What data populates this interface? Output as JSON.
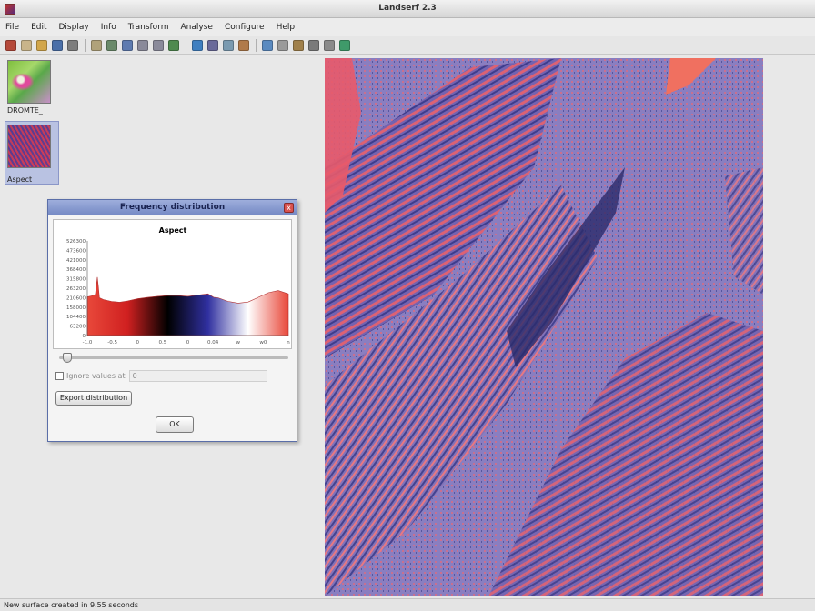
{
  "window": {
    "title": "Landserf 2.3"
  },
  "menu": [
    "File",
    "Edit",
    "Display",
    "Info",
    "Transform",
    "Analyse",
    "Configure",
    "Help"
  ],
  "toolbar_icons": [
    {
      "name": "save-icon",
      "color": "#b5493a"
    },
    {
      "name": "new-icon",
      "color": "#c9b48a"
    },
    {
      "name": "open-folder-icon",
      "color": "#d2a64a"
    },
    {
      "name": "save-disk-icon",
      "color": "#4a6fa8"
    },
    {
      "name": "print-icon",
      "color": "#7d7d7d"
    },
    {
      "name": "pencil-icon",
      "color": "#b0a27a"
    },
    {
      "name": "select-icon",
      "color": "#6a8a6a"
    },
    {
      "name": "pan-icon",
      "color": "#5e7bb0"
    },
    {
      "name": "zoom-in-icon",
      "color": "#8a8a9a"
    },
    {
      "name": "zoom-out-icon",
      "color": "#8a8a9a"
    },
    {
      "name": "refresh-icon",
      "color": "#4f8a4f"
    },
    {
      "name": "chart-icon",
      "color": "#3f7fc0"
    },
    {
      "name": "table-icon",
      "color": "#6a6a9a"
    },
    {
      "name": "layers-icon",
      "color": "#7a9ab0"
    },
    {
      "name": "stats-icon",
      "color": "#b07a4a"
    },
    {
      "name": "histogram-icon",
      "color": "#5a8ac0"
    },
    {
      "name": "profile-icon",
      "color": "#9a9a9a"
    },
    {
      "name": "measure-icon",
      "color": "#a0804a"
    },
    {
      "name": "info-icon",
      "color": "#7a7a7a"
    },
    {
      "name": "settings-icon",
      "color": "#8a8a8a"
    },
    {
      "name": "globe-icon",
      "color": "#3f9a6a"
    }
  ],
  "thumbnails": [
    {
      "label": "DROMTE_"
    },
    {
      "label": "Aspect"
    }
  ],
  "dialog": {
    "title": "Frequency distribution",
    "close_label": "x",
    "ignore_label": "Ignore values at",
    "ignore_value": "0",
    "export_label": "Export distribution",
    "ok_label": "OK",
    "slider_value": 0.0
  },
  "chart_data": {
    "type": "area",
    "title": "Aspect",
    "xlabel": "",
    "ylabel": "",
    "x_tick_labels": [
      "-1.0",
      "-0.5",
      "0",
      "0.5",
      "0",
      "0.04",
      "w",
      "w0",
      "n"
    ],
    "y_tick_labels": [
      "0",
      "63200",
      "104400",
      "158000",
      "210600",
      "263200",
      "315800",
      "368400",
      "421000",
      "473600",
      "526300"
    ],
    "ylim": [
      0,
      526300
    ],
    "x": [
      0,
      0.02,
      0.04,
      0.05,
      0.055,
      0.06,
      0.08,
      0.12,
      0.16,
      0.2,
      0.25,
      0.3,
      0.35,
      0.4,
      0.45,
      0.5,
      0.55,
      0.6,
      0.63,
      0.65,
      0.7,
      0.75,
      0.8,
      0.85,
      0.9,
      0.95,
      1.0
    ],
    "values": [
      215000,
      220000,
      228000,
      325000,
      270000,
      210000,
      200000,
      190000,
      185000,
      192000,
      205000,
      212000,
      218000,
      222000,
      222000,
      218000,
      225000,
      232000,
      212000,
      210000,
      190000,
      180000,
      186000,
      212000,
      238000,
      250000,
      232000
    ],
    "gradient_colors": [
      "#e8483a",
      "#d02020",
      "#000000",
      "#3030a0",
      "#ffffff",
      "#e8483a"
    ],
    "grid": false
  },
  "status": {
    "text": "New surface created in 9.55 seconds"
  }
}
